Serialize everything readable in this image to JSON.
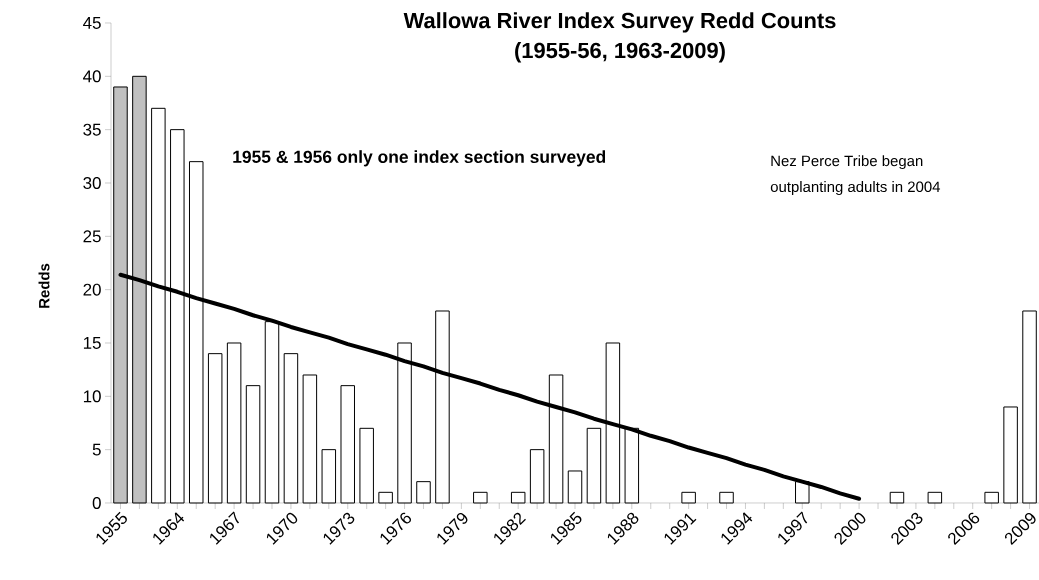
{
  "chart_data": {
    "type": "bar",
    "title": "Wallowa River Index Survey Redd Counts\n(1955-56, 1963-2009)",
    "ylabel": "Redds",
    "categories": [
      "1955",
      null,
      null,
      "1964",
      null,
      null,
      "1967",
      null,
      null,
      "1970",
      null,
      null,
      "1973",
      null,
      null,
      "1976",
      null,
      null,
      "1979",
      null,
      null,
      "1982",
      null,
      null,
      "1985",
      null,
      null,
      "1988",
      null,
      null,
      "1991",
      null,
      null,
      "1994",
      null,
      null,
      "1997",
      null,
      null,
      "2000",
      null,
      null,
      "2003",
      null,
      null,
      "2006",
      null,
      null,
      "2009"
    ],
    "series": [
      {
        "values": [
          39,
          40,
          37,
          35,
          32,
          14,
          15,
          11,
          17,
          14,
          12,
          5,
          11,
          7,
          1,
          15,
          2,
          18,
          0,
          1,
          0,
          1,
          5,
          12,
          3,
          7,
          15,
          7,
          0,
          0,
          1,
          0,
          1,
          0,
          0,
          0,
          2,
          0,
          0,
          0,
          0,
          1,
          0,
          1,
          0,
          0,
          1,
          9,
          18
        ],
        "colors": [
          "#c0c0c0",
          "#c0c0c0",
          "#ffffff",
          "#ffffff",
          "#ffffff",
          "#ffffff",
          "#ffffff",
          "#ffffff",
          "#ffffff",
          "#ffffff",
          "#ffffff",
          "#ffffff",
          "#ffffff",
          "#ffffff",
          "#ffffff",
          "#ffffff",
          "#ffffff",
          "#ffffff",
          "#ffffff",
          "#ffffff",
          "#ffffff",
          "#ffffff",
          "#ffffff",
          "#ffffff",
          "#ffffff",
          "#ffffff",
          "#ffffff",
          "#ffffff",
          "#ffffff",
          "#ffffff",
          "#ffffff",
          "#ffffff",
          "#ffffff",
          "#ffffff",
          "#ffffff",
          "#ffffff",
          "#ffffff",
          "#ffffff",
          "#ffffff",
          "#ffffff",
          "#ffffff",
          "#ffffff",
          "#ffffff",
          "#ffffff",
          "#ffffff",
          "#ffffff",
          "#ffffff",
          "#ffffff",
          "#ffffff"
        ]
      },
      {
        "type": "line",
        "values": [
          21.4,
          20.9,
          20.3,
          19.8,
          19.2,
          18.7,
          18.2,
          17.6,
          17.1,
          16.5,
          16.0,
          15.5,
          14.9,
          14.4,
          13.9,
          13.3,
          12.8,
          12.2,
          11.7,
          11.2,
          10.6,
          10.1,
          9.5,
          9.0,
          8.5,
          7.9,
          7.4,
          6.9,
          6.3,
          5.8,
          5.2,
          4.7,
          4.2,
          3.6,
          3.1,
          2.5,
          2.0,
          1.5,
          0.9,
          0.4,
          null,
          null,
          null,
          null,
          null,
          null,
          null,
          null,
          null
        ],
        "color": "#000000"
      }
    ],
    "ylim": [
      0,
      45
    ],
    "yticks": [
      0,
      5,
      10,
      15,
      20,
      25,
      30,
      35,
      40,
      45
    ],
    "annotations": [
      "1955 & 1956 only one index section surveyed",
      "Nez Perce Tribe began\noutplanting adults in 2004"
    ]
  }
}
